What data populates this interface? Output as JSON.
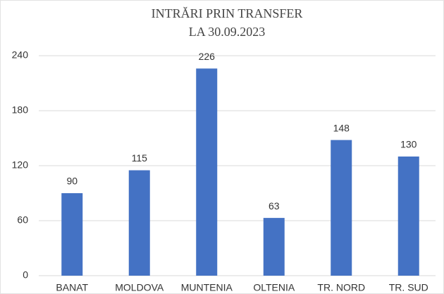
{
  "chart_data": {
    "type": "bar",
    "title": "INTRĂRI PRIN TRANSFER",
    "subtitle": "LA 30.09.2023",
    "categories": [
      "BANAT",
      "MOLDOVA",
      "MUNTENIA",
      "OLTENIA",
      "TR. NORD",
      "TR. SUD"
    ],
    "values": [
      90,
      115,
      226,
      63,
      148,
      130
    ],
    "color": "#4472c4",
    "ylim": [
      0,
      240
    ],
    "yticks": [
      0,
      60,
      120,
      180,
      240
    ],
    "grid": true
  }
}
